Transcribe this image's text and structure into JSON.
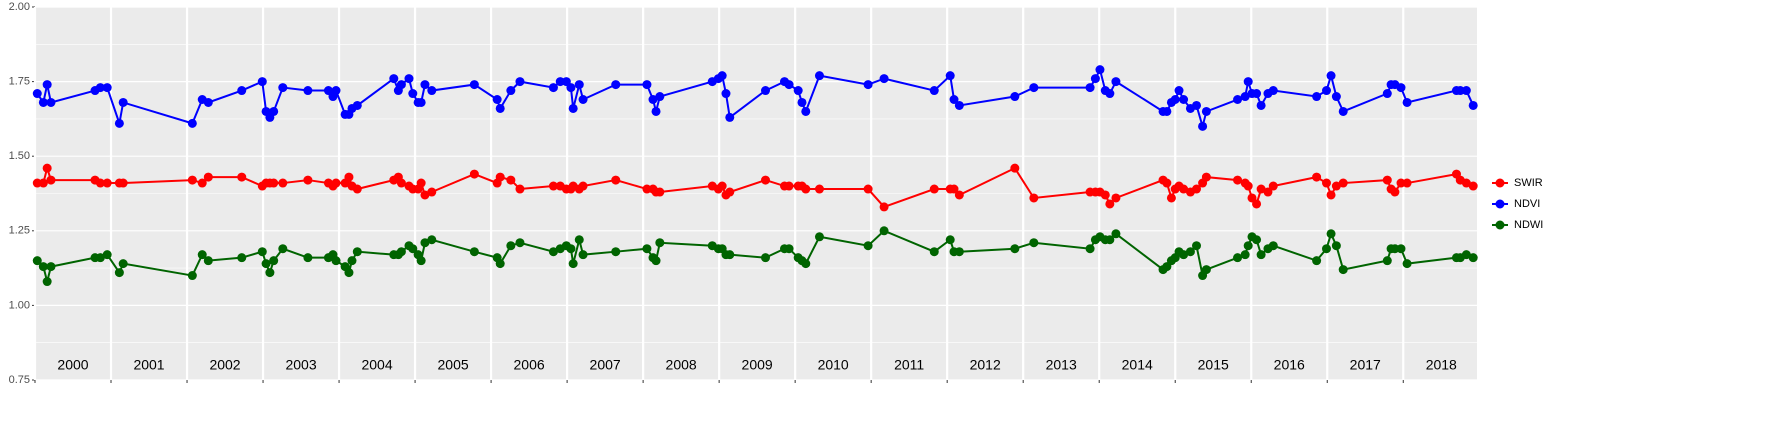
{
  "chart_data": {
    "type": "line",
    "x": [
      2000.03,
      2000.11,
      2000.16,
      2000.21,
      2000.79,
      2000.86,
      2000.95,
      2001.11,
      2001.16,
      2002.07,
      2002.2,
      2002.28,
      2002.72,
      2002.99,
      2003.04,
      2003.09,
      2003.14,
      2003.26,
      2003.59,
      2003.86,
      2003.92,
      2003.96,
      2004.08,
      2004.13,
      2004.17,
      2004.24,
      2004.72,
      2004.78,
      2004.82,
      2004.92,
      2004.97,
      2005.04,
      2005.08,
      2005.13,
      2005.22,
      2005.78,
      2006.08,
      2006.12,
      2006.26,
      2006.38,
      2006.82,
      2006.91,
      2006.99,
      2007.05,
      2007.08,
      2007.16,
      2007.21,
      2007.64,
      2008.05,
      2008.13,
      2008.17,
      2008.22,
      2008.91,
      2008.99,
      2009.04,
      2009.09,
      2009.14,
      2009.61,
      2009.86,
      2009.92,
      2010.04,
      2010.09,
      2010.14,
      2010.32,
      2010.96,
      2011.17,
      2011.83,
      2012.04,
      2012.09,
      2012.16,
      2012.89,
      2013.14,
      2013.88,
      2013.95,
      2014.01,
      2014.08,
      2014.14,
      2014.22,
      2014.84,
      2014.89,
      2014.95,
      2015.0,
      2015.05,
      2015.11,
      2015.2,
      2015.28,
      2015.36,
      2015.41,
      2015.82,
      2015.92,
      2015.96,
      2016.01,
      2016.07,
      2016.13,
      2016.22,
      2016.29,
      2016.86,
      2016.99,
      2017.05,
      2017.12,
      2017.21,
      2017.79,
      2017.84,
      2017.89,
      2017.97,
      2018.05,
      2018.7,
      2018.75,
      2018.83,
      2018.92
    ],
    "series": [
      {
        "name": "SWIR",
        "color": "#ff0000",
        "values": [
          1.41,
          1.41,
          1.46,
          1.42,
          1.42,
          1.41,
          1.41,
          1.41,
          1.41,
          1.42,
          1.41,
          1.43,
          1.43,
          1.4,
          1.41,
          1.41,
          1.41,
          1.41,
          1.42,
          1.41,
          1.4,
          1.41,
          1.41,
          1.43,
          1.4,
          1.39,
          1.42,
          1.43,
          1.41,
          1.4,
          1.39,
          1.39,
          1.41,
          1.37,
          1.38,
          1.44,
          1.41,
          1.43,
          1.42,
          1.39,
          1.4,
          1.4,
          1.39,
          1.39,
          1.4,
          1.39,
          1.4,
          1.42,
          1.39,
          1.39,
          1.38,
          1.38,
          1.4,
          1.39,
          1.4,
          1.37,
          1.38,
          1.42,
          1.4,
          1.4,
          1.4,
          1.4,
          1.39,
          1.39,
          1.39,
          1.33,
          1.39,
          1.39,
          1.39,
          1.37,
          1.46,
          1.36,
          1.38,
          1.38,
          1.38,
          1.37,
          1.34,
          1.36,
          1.42,
          1.41,
          1.36,
          1.39,
          1.4,
          1.39,
          1.38,
          1.39,
          1.41,
          1.43,
          1.42,
          1.41,
          1.4,
          1.36,
          1.34,
          1.39,
          1.38,
          1.4,
          1.43,
          1.41,
          1.37,
          1.4,
          1.41,
          1.42,
          1.39,
          1.38,
          1.41,
          1.41,
          1.44,
          1.42,
          1.41,
          1.4
        ]
      },
      {
        "name": "NDVI",
        "color": "#0000ff",
        "values": [
          1.71,
          1.68,
          1.74,
          1.68,
          1.72,
          1.73,
          1.73,
          1.61,
          1.68,
          1.61,
          1.69,
          1.68,
          1.72,
          1.75,
          1.65,
          1.63,
          1.65,
          1.73,
          1.72,
          1.72,
          1.7,
          1.72,
          1.64,
          1.64,
          1.66,
          1.67,
          1.76,
          1.72,
          1.74,
          1.76,
          1.71,
          1.68,
          1.68,
          1.74,
          1.72,
          1.74,
          1.69,
          1.66,
          1.72,
          1.75,
          1.73,
          1.75,
          1.75,
          1.73,
          1.66,
          1.74,
          1.69,
          1.74,
          1.74,
          1.69,
          1.65,
          1.7,
          1.75,
          1.76,
          1.77,
          1.71,
          1.63,
          1.72,
          1.75,
          1.74,
          1.72,
          1.68,
          1.65,
          1.77,
          1.74,
          1.76,
          1.72,
          1.77,
          1.69,
          1.67,
          1.7,
          1.73,
          1.73,
          1.76,
          1.79,
          1.72,
          1.71,
          1.75,
          1.65,
          1.65,
          1.68,
          1.69,
          1.72,
          1.69,
          1.66,
          1.67,
          1.6,
          1.65,
          1.69,
          1.7,
          1.75,
          1.71,
          1.71,
          1.67,
          1.71,
          1.72,
          1.7,
          1.72,
          1.77,
          1.7,
          1.65,
          1.71,
          1.74,
          1.74,
          1.73,
          1.68,
          1.72,
          1.72,
          1.72,
          1.67
        ]
      },
      {
        "name": "NDWI",
        "color": "#006400",
        "values": [
          1.15,
          1.13,
          1.08,
          1.13,
          1.16,
          1.16,
          1.17,
          1.11,
          1.14,
          1.1,
          1.17,
          1.15,
          1.16,
          1.18,
          1.14,
          1.11,
          1.15,
          1.19,
          1.16,
          1.16,
          1.17,
          1.15,
          1.13,
          1.11,
          1.15,
          1.18,
          1.17,
          1.17,
          1.18,
          1.2,
          1.19,
          1.17,
          1.15,
          1.21,
          1.22,
          1.18,
          1.16,
          1.14,
          1.2,
          1.21,
          1.18,
          1.19,
          1.2,
          1.19,
          1.14,
          1.22,
          1.17,
          1.18,
          1.19,
          1.16,
          1.15,
          1.21,
          1.2,
          1.19,
          1.19,
          1.17,
          1.17,
          1.16,
          1.19,
          1.19,
          1.16,
          1.15,
          1.14,
          1.23,
          1.2,
          1.25,
          1.18,
          1.22,
          1.18,
          1.18,
          1.19,
          1.21,
          1.19,
          1.22,
          1.23,
          1.22,
          1.22,
          1.24,
          1.12,
          1.13,
          1.15,
          1.16,
          1.18,
          1.17,
          1.18,
          1.2,
          1.1,
          1.12,
          1.16,
          1.17,
          1.2,
          1.23,
          1.22,
          1.17,
          1.19,
          1.2,
          1.15,
          1.19,
          1.24,
          1.2,
          1.12,
          1.15,
          1.19,
          1.19,
          1.19,
          1.14,
          1.16,
          1.16,
          1.17,
          1.16
        ]
      }
    ],
    "xlim": [
      2000,
      2018.97
    ],
    "xticks": [
      2000,
      2001,
      2002,
      2003,
      2004,
      2005,
      2006,
      2007,
      2008,
      2009,
      2010,
      2011,
      2012,
      2013,
      2014,
      2015,
      2016,
      2017,
      2018
    ],
    "ylim": [
      0.75,
      2.0
    ],
    "yticks": [
      0.75,
      {
        "value": 1,
        "label": "1.00"
      },
      {
        "value": 1.25,
        "label": "1.25"
      },
      {
        "value": 1.5,
        "label": "1.50"
      },
      {
        "value": 1.75,
        "label": "1.75"
      },
      {
        "value": 2,
        "label": "2.00"
      }
    ],
    "y_minor_grid": [
      0.875,
      1.125,
      1.375,
      1.625,
      1.875
    ],
    "year_labels": [
      {
        "text": "2000",
        "x": 2000.5
      },
      {
        "text": "2001",
        "x": 2001.5
      },
      {
        "text": "2002",
        "x": 2002.5
      },
      {
        "text": "2003",
        "x": 2003.5
      },
      {
        "text": "2004",
        "x": 2004.5
      },
      {
        "text": "2005",
        "x": 2005.5
      },
      {
        "text": "2006",
        "x": 2006.5
      },
      {
        "text": "2007",
        "x": 2007.5
      },
      {
        "text": "2008",
        "x": 2008.5
      },
      {
        "text": "2009",
        "x": 2009.5
      },
      {
        "text": "2010",
        "x": 2010.5
      },
      {
        "text": "2011",
        "x": 2011.5
      },
      {
        "text": "2012",
        "x": 2012.5
      },
      {
        "text": "2013",
        "x": 2013.5
      },
      {
        "text": "2014",
        "x": 2014.5
      },
      {
        "text": "2015",
        "x": 2015.5
      },
      {
        "text": "2016",
        "x": 2016.5
      },
      {
        "text": "2017",
        "x": 2017.5
      },
      {
        "text": "2018",
        "x": 2018.5
      }
    ],
    "grid": true,
    "legend": "right"
  }
}
